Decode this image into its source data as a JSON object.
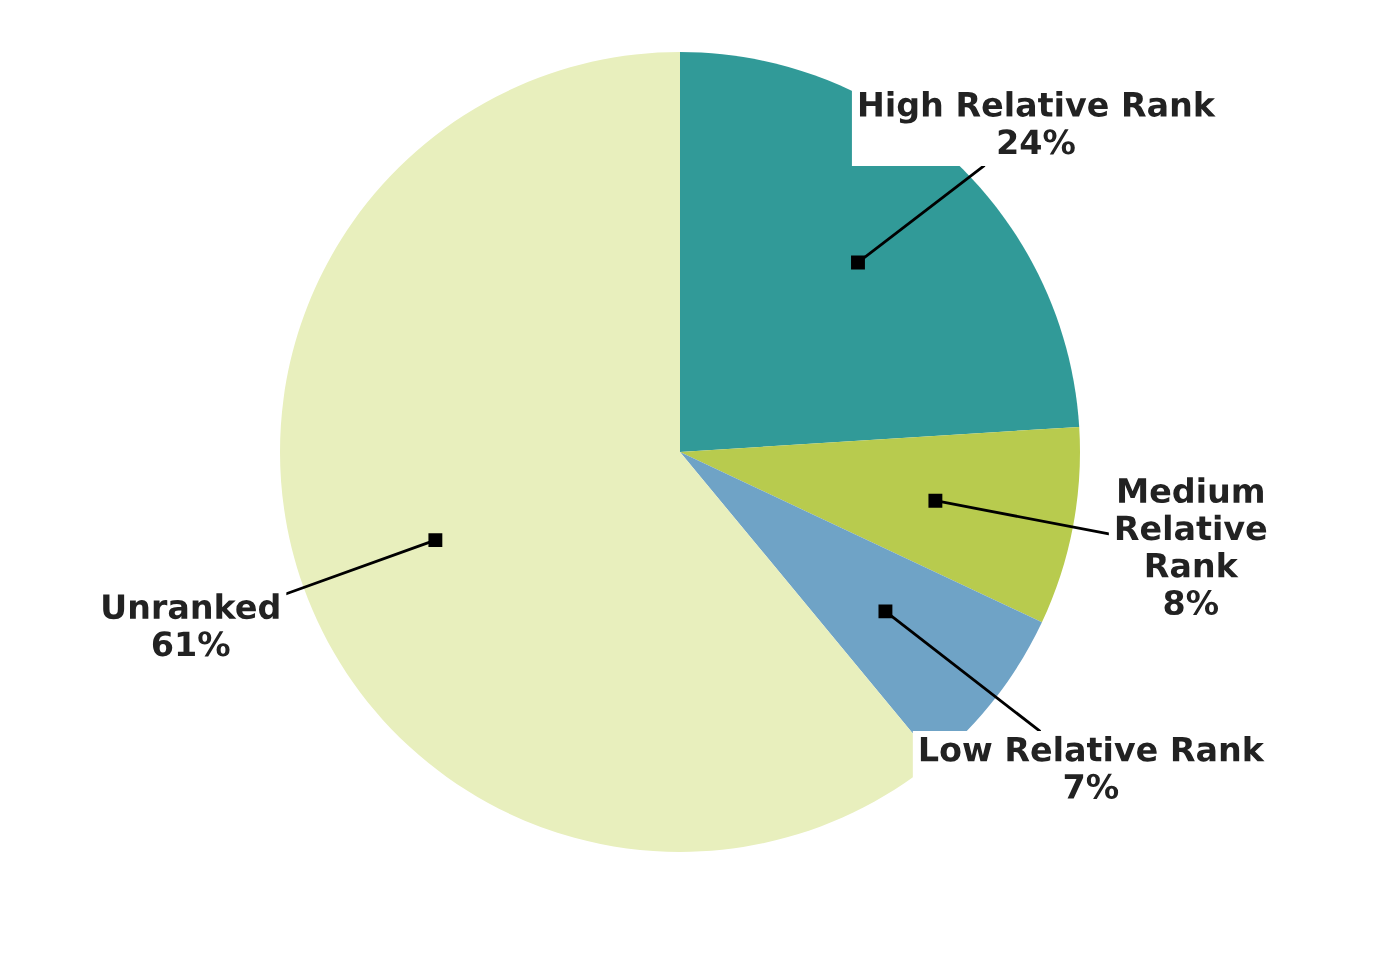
{
  "chart_data": {
    "type": "pie",
    "categories": [
      "High Relative Rank",
      "Medium Relative Rank",
      "Low Relative Rank",
      "Unranked"
    ],
    "values": [
      24,
      8,
      7,
      61
    ],
    "colors": [
      "#319a98",
      "#b8cb4e",
      "#6fa3c6",
      "#e8efbd"
    ],
    "value_labels": [
      "24%",
      "8%",
      "7%",
      "61%"
    ],
    "legend": false
  }
}
